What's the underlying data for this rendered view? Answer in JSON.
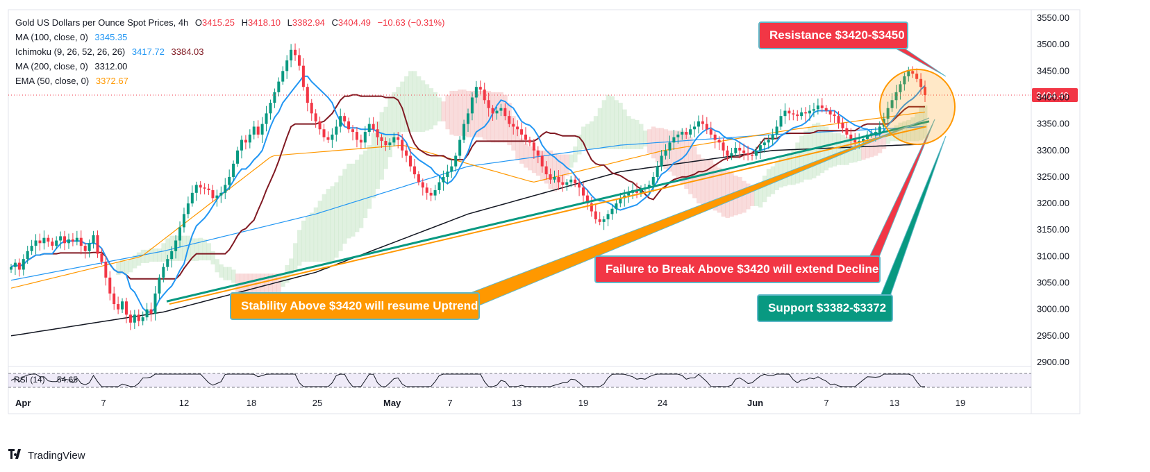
{
  "header": {
    "symbol": "Gold US Dollars per Ounce Spot Prices, 4h",
    "o_label": "O",
    "o_value": "3415.25",
    "h_label": "H",
    "h_value": "3418.10",
    "l_label": "L",
    "l_value": "3382.94",
    "c_label": "C",
    "c_value": "3404.49",
    "change": "−10.63 (−0.31%)"
  },
  "indicators": [
    {
      "label": "MA (100, close, 0)",
      "values": [
        "3345.35"
      ],
      "colors": [
        "#2196f3"
      ]
    },
    {
      "label": "Ichimoku (9, 26, 52, 26, 26)",
      "values": [
        "3417.72",
        "3384.03"
      ],
      "colors": [
        "#2196f3",
        "#801922"
      ]
    },
    {
      "label": "MA (200, close, 0)",
      "values": [
        "3312.00"
      ],
      "colors": [
        "#131722"
      ]
    },
    {
      "label": "EMA (50, close, 0)",
      "values": [
        "3372.67"
      ],
      "colors": [
        "#ff9800"
      ]
    }
  ],
  "price_axis": {
    "ticks": [
      "3550.00",
      "3500.00",
      "3450.00",
      "3400.00",
      "3350.00",
      "3300.00",
      "3250.00",
      "3200.00",
      "3150.00",
      "3100.00",
      "3050.00",
      "3000.00",
      "2950.00",
      "2900.00"
    ],
    "current_price": "3404.49"
  },
  "time_axis": {
    "ticks": [
      "Apr",
      "7",
      "12",
      "18",
      "25",
      "May",
      "7",
      "13",
      "19",
      "24",
      "Jun",
      "7",
      "13",
      "19"
    ]
  },
  "rsi": {
    "label": "RSI (14)",
    "value": "54.65"
  },
  "annotations": {
    "resistance": "Resistance $3420-$3450",
    "failure": "Failure to Break Above $3420 will extend Decline",
    "stability": "Stability Above $3420 will resume Uptrend",
    "support": "Support $3382-$3372"
  },
  "brand": "TradingView",
  "colors": {
    "up": "#089981",
    "down": "#f23645",
    "ma100": "#2196f3",
    "ma200": "#131722",
    "ema50": "#ff9800",
    "tenkan": "#2196f3",
    "kijun": "#801922",
    "resistance_box": "#f23645",
    "support_box": "#089981",
    "stability_box": "#ff9800",
    "cloud_bull": "#a5d6a7",
    "cloud_bear": "#ef9a9a",
    "rsi_band": "#7e57c2"
  },
  "chart_data": {
    "type": "candlestick",
    "title": "Gold US Dollars per Ounce Spot Prices, 4h",
    "ylim": [
      2885,
      3565
    ],
    "x_ticks": [
      "Apr",
      "7",
      "12",
      "18",
      "25",
      "May",
      "7",
      "13",
      "19",
      "24",
      "Jun",
      "7",
      "13",
      "19"
    ],
    "closes": [
      3080,
      3088,
      3075,
      3095,
      3110,
      3120,
      3130,
      3125,
      3135,
      3128,
      3120,
      3130,
      3138,
      3125,
      3132,
      3128,
      3135,
      3120,
      3110,
      3125,
      3140,
      3105,
      3090,
      3060,
      3030,
      3010,
      3000,
      3015,
      2990,
      2975,
      2990,
      2978,
      2985,
      3000,
      2992,
      3030,
      3060,
      3080,
      3095,
      3110,
      3130,
      3155,
      3180,
      3200,
      3220,
      3235,
      3230,
      3228,
      3225,
      3210,
      3215,
      3220,
      3235,
      3250,
      3275,
      3300,
      3320,
      3315,
      3330,
      3345,
      3330,
      3350,
      3370,
      3390,
      3410,
      3430,
      3450,
      3470,
      3490,
      3480,
      3460,
      3420,
      3390,
      3370,
      3355,
      3340,
      3325,
      3320,
      3330,
      3345,
      3365,
      3355,
      3340,
      3335,
      3320,
      3315,
      3335,
      3350,
      3340,
      3325,
      3318,
      3310,
      3315,
      3325,
      3320,
      3300,
      3290,
      3270,
      3255,
      3240,
      3230,
      3220,
      3215,
      3225,
      3240,
      3250,
      3260,
      3270,
      3290,
      3320,
      3350,
      3370,
      3400,
      3420,
      3415,
      3395,
      3380,
      3370,
      3375,
      3380,
      3365,
      3350,
      3345,
      3340,
      3330,
      3320,
      3315,
      3300,
      3290,
      3270,
      3255,
      3245,
      3250,
      3240,
      3235,
      3240,
      3245,
      3238,
      3230,
      3215,
      3200,
      3185,
      3170,
      3165,
      3170,
      3180,
      3190,
      3200,
      3210,
      3215,
      3220,
      3225,
      3220,
      3228,
      3230,
      3235,
      3250,
      3270,
      3290,
      3300,
      3315,
      3325,
      3330,
      3335,
      3330,
      3340,
      3345,
      3355,
      3350,
      3340,
      3330,
      3320,
      3315,
      3300,
      3290,
      3295,
      3305,
      3300,
      3295,
      3292,
      3290,
      3300,
      3310,
      3315,
      3320,
      3330,
      3345,
      3365,
      3375,
      3370,
      3368,
      3365,
      3372,
      3370,
      3375,
      3378,
      3385,
      3380,
      3375,
      3368,
      3365,
      3352,
      3342,
      3330,
      3320,
      3315,
      3318,
      3322,
      3330,
      3332,
      3335,
      3345,
      3360,
      3380,
      3395,
      3410,
      3425,
      3440,
      3450,
      3445,
      3435,
      3420,
      3404.49
    ],
    "ma100": [
      3055,
      3110,
      3180,
      3270,
      3310,
      3330,
      3345
    ],
    "ma200": [
      2950,
      2995,
      3070,
      3180,
      3260,
      3300,
      3312
    ],
    "ema50": [
      3040,
      3100,
      3290,
      3310,
      3240,
      3300,
      3340,
      3372.67
    ],
    "support_trendline": {
      "from": [
        "Apr 12",
        3015
      ],
      "to": [
        "Jun 15",
        3355
      ]
    },
    "resistance_zone": [
      3420,
      3450
    ],
    "support_zone": [
      3372,
      3382
    ],
    "rsi": {
      "value": 54.65,
      "levels": [
        30,
        70
      ]
    }
  }
}
